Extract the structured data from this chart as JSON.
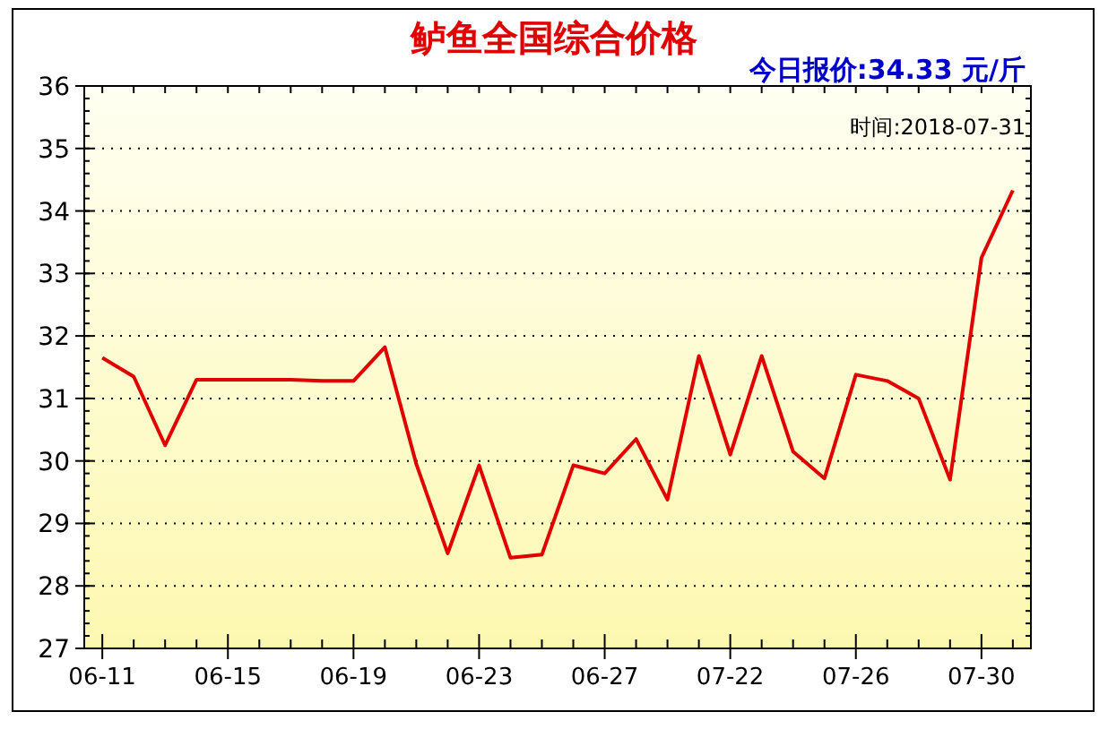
{
  "chart_data": {
    "type": "line",
    "title": "鲈鱼全国综合价格",
    "annotations": [
      "今日报价:34.33 元/斤",
      "时间:2018-07-31"
    ],
    "categories": [
      "06-11",
      null,
      null,
      null,
      "06-15",
      null,
      null,
      null,
      "06-19",
      null,
      null,
      null,
      "06-23",
      null,
      null,
      null,
      "06-27",
      null,
      null,
      null,
      "07-22",
      null,
      null,
      null,
      "07-26",
      null,
      null,
      null,
      "07-30",
      null
    ],
    "series": [
      {
        "color": "#e00000",
        "values": [
          31.65,
          31.35,
          30.25,
          31.3,
          31.3,
          31.3,
          31.3,
          31.28,
          31.28,
          31.82,
          29.95,
          28.52,
          29.93,
          28.45,
          28.5,
          29.93,
          29.8,
          30.35,
          29.38,
          31.68,
          30.1,
          31.68,
          30.15,
          29.72,
          31.38,
          31.28,
          31.0,
          29.7,
          33.25,
          34.33
        ]
      }
    ],
    "ylim": [
      27,
      36
    ],
    "yticks": [
      27,
      28,
      29,
      30,
      31,
      32,
      33,
      34,
      35,
      36
    ],
    "grid": "y"
  }
}
